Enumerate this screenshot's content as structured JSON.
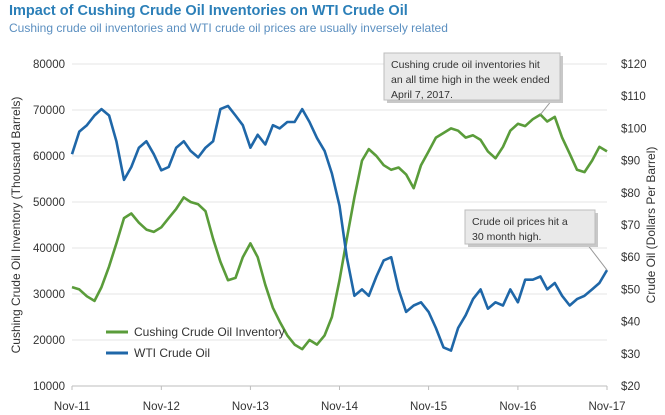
{
  "chart_data": {
    "type": "line",
    "title": "Impact of Cushing Crude Oil Inventories on WTI Crude Oil",
    "subtitle": "Cushing crude oil inventories and WTI crude oil prices are usually inversely related",
    "xlabel": "",
    "ylabel_left": "Cushing Crude Oil Inventory (Thousand Barrels)",
    "ylabel_right": "Crude Oil (Dollars Per Barrel)",
    "x_ticks": [
      "Nov-11",
      "Nov-12",
      "Nov-13",
      "Nov-14",
      "Nov-15",
      "Nov-16",
      "Nov-17"
    ],
    "y_left_ticks": [
      "10000",
      "20000",
      "30000",
      "40000",
      "50000",
      "60000",
      "70000",
      "80000"
    ],
    "y_right_ticks": [
      "$20",
      "$30",
      "$40",
      "$50",
      "$60",
      "$70",
      "$80",
      "$90",
      "$100",
      "$110",
      "$120"
    ],
    "y_left_lim": [
      10000,
      80000
    ],
    "y_right_lim": [
      20,
      120
    ],
    "grid": true,
    "legend_position": "bottom-left",
    "series": [
      {
        "name": "Cushing Crude Oil Inventory",
        "axis": "left",
        "color": "#5a9c3a",
        "x": [
          "2011-11",
          "2011-12",
          "2012-01",
          "2012-02",
          "2012-03",
          "2012-04",
          "2012-05",
          "2012-06",
          "2012-07",
          "2012-08",
          "2012-09",
          "2012-10",
          "2012-11",
          "2012-12",
          "2013-01",
          "2013-02",
          "2013-03",
          "2013-04",
          "2013-05",
          "2013-06",
          "2013-07",
          "2013-08",
          "2013-09",
          "2013-10",
          "2013-11",
          "2013-12",
          "2014-01",
          "2014-02",
          "2014-03",
          "2014-04",
          "2014-05",
          "2014-06",
          "2014-07",
          "2014-08",
          "2014-09",
          "2014-10",
          "2014-11",
          "2014-12",
          "2015-01",
          "2015-02",
          "2015-03",
          "2015-04",
          "2015-05",
          "2015-06",
          "2015-07",
          "2015-08",
          "2015-09",
          "2015-10",
          "2015-11",
          "2015-12",
          "2016-01",
          "2016-02",
          "2016-03",
          "2016-04",
          "2016-05",
          "2016-06",
          "2016-07",
          "2016-08",
          "2016-09",
          "2016-10",
          "2016-11",
          "2016-12",
          "2017-01",
          "2017-02",
          "2017-03",
          "2017-04",
          "2017-05",
          "2017-06",
          "2017-07",
          "2017-08",
          "2017-09",
          "2017-10",
          "2017-11"
        ],
        "values": [
          31500,
          31000,
          29500,
          28500,
          31500,
          36000,
          41000,
          46500,
          47500,
          45500,
          44000,
          43500,
          44500,
          46500,
          48500,
          51000,
          50000,
          49500,
          48000,
          42000,
          37000,
          33000,
          33500,
          38000,
          41000,
          38000,
          32000,
          27000,
          24000,
          21000,
          19000,
          18000,
          20000,
          19000,
          21000,
          25000,
          33000,
          42000,
          51000,
          59000,
          61500,
          60000,
          58000,
          57000,
          57500,
          56000,
          53000,
          58000,
          61000,
          64000,
          65000,
          66000,
          65500,
          64000,
          64500,
          63500,
          61000,
          59500,
          62000,
          65500,
          67000,
          66500,
          68000,
          69000,
          67500,
          68500,
          64000,
          60500,
          57000,
          56500,
          59000,
          62000,
          61000
        ],
        "callout": "Cushing crude oil inventories hit an all time high in the week ended April 7, 2017."
      },
      {
        "name": "WTI Crude Oil",
        "axis": "right",
        "color": "#1f67a8",
        "x": [
          "2011-11",
          "2011-12",
          "2012-01",
          "2012-02",
          "2012-03",
          "2012-04",
          "2012-05",
          "2012-06",
          "2012-07",
          "2012-08",
          "2012-09",
          "2012-10",
          "2012-11",
          "2012-12",
          "2013-01",
          "2013-02",
          "2013-03",
          "2013-04",
          "2013-05",
          "2013-06",
          "2013-07",
          "2013-08",
          "2013-09",
          "2013-10",
          "2013-11",
          "2013-12",
          "2014-01",
          "2014-02",
          "2014-03",
          "2014-04",
          "2014-05",
          "2014-06",
          "2014-07",
          "2014-08",
          "2014-09",
          "2014-10",
          "2014-11",
          "2014-12",
          "2015-01",
          "2015-02",
          "2015-03",
          "2015-04",
          "2015-05",
          "2015-06",
          "2015-07",
          "2015-08",
          "2015-09",
          "2015-10",
          "2015-11",
          "2015-12",
          "2016-01",
          "2016-02",
          "2016-03",
          "2016-04",
          "2016-05",
          "2016-06",
          "2016-07",
          "2016-08",
          "2016-09",
          "2016-10",
          "2016-11",
          "2016-12",
          "2017-01",
          "2017-02",
          "2017-03",
          "2017-04",
          "2017-05",
          "2017-06",
          "2017-07",
          "2017-08",
          "2017-09",
          "2017-10",
          "2017-11"
        ],
        "values": [
          92,
          99,
          101,
          104,
          106,
          104,
          96,
          84,
          88,
          94,
          96,
          92,
          87,
          88,
          94,
          96,
          93,
          91,
          94,
          96,
          106,
          107,
          104,
          101,
          94,
          98,
          95,
          101,
          100,
          102,
          102,
          106,
          102,
          97,
          93,
          86,
          76,
          60,
          48,
          50,
          48,
          54,
          59,
          60,
          50,
          43,
          45,
          46,
          43,
          38,
          32,
          31,
          38,
          42,
          47,
          50,
          44,
          46,
          45,
          50,
          46,
          53,
          53,
          54,
          50,
          52,
          48,
          45,
          47,
          48,
          50,
          52,
          56
        ]
      }
    ],
    "annotations": [
      {
        "lines": [
          "Cushing crude oil inventories hit",
          "an all time high in the week ended",
          "April 7, 2017."
        ]
      },
      {
        "lines": [
          "Crude oil prices hit a",
          "30 month high."
        ]
      }
    ]
  }
}
